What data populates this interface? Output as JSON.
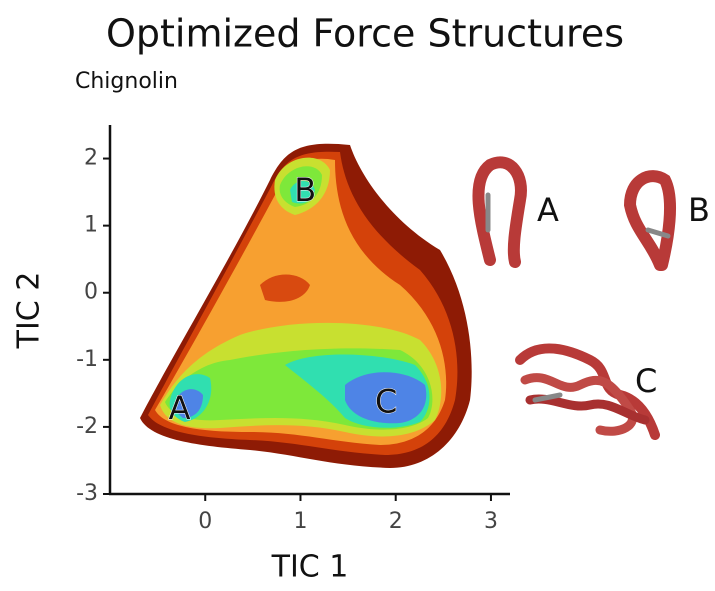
{
  "chart_data": {
    "type": "hexbin",
    "title": "Optimized Force Structures",
    "subtitle": "Chignolin",
    "x_label": "TIC 1",
    "y_label": "TIC 2",
    "xlim": [
      -1,
      3.2
    ],
    "ylim": [
      -3,
      2.5
    ],
    "xticks": [
      0,
      1,
      2,
      3
    ],
    "yticks": [
      2,
      1,
      0,
      -1,
      -2,
      -3
    ],
    "annotations": [
      {
        "text": "A",
        "x": -0.27,
        "y": -1.75
      },
      {
        "text": "B",
        "x": 1.05,
        "y": 1.5
      },
      {
        "text": "C",
        "x": 1.9,
        "y": -1.65
      }
    ],
    "structure_labels": [
      "A",
      "B",
      "C"
    ]
  }
}
